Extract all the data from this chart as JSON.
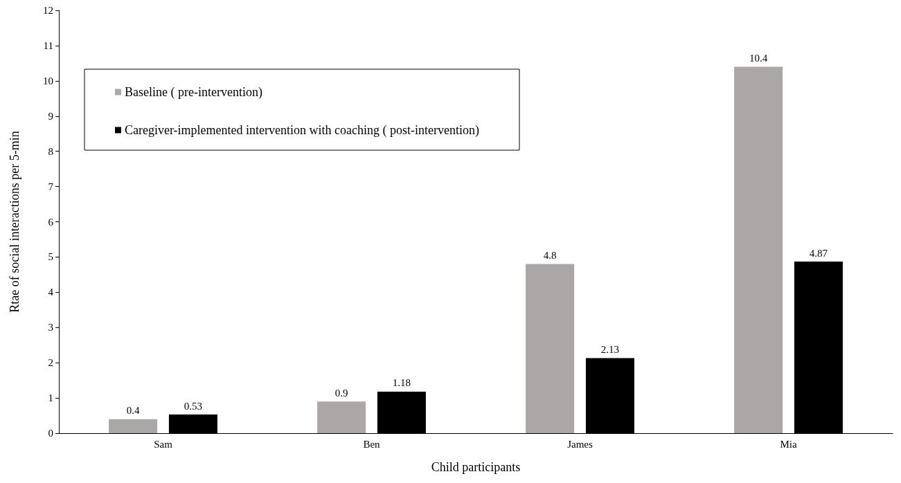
{
  "chart_data": {
    "type": "bar",
    "xlabel": "Child participants",
    "ylabel": "Rtae of social interactions per 5-min",
    "categories": [
      "Sam",
      "Ben",
      "James",
      "Mia"
    ],
    "series": [
      {
        "name": "Baseline ( pre-intervention)",
        "color": "#aba7a6",
        "values": [
          0.4,
          0.9,
          4.8,
          10.4
        ]
      },
      {
        "name": "Caregiver-implemented intervention with coaching ( post-intervention)",
        "color": "#000000",
        "values": [
          0.53,
          1.18,
          2.13,
          4.87
        ]
      }
    ],
    "ylim": [
      0,
      12
    ],
    "yticks": [
      0,
      1,
      2,
      3,
      4,
      5,
      6,
      7,
      8,
      9,
      10,
      11,
      12
    ],
    "grid": false,
    "legend": "top left",
    "data_labels": true
  }
}
